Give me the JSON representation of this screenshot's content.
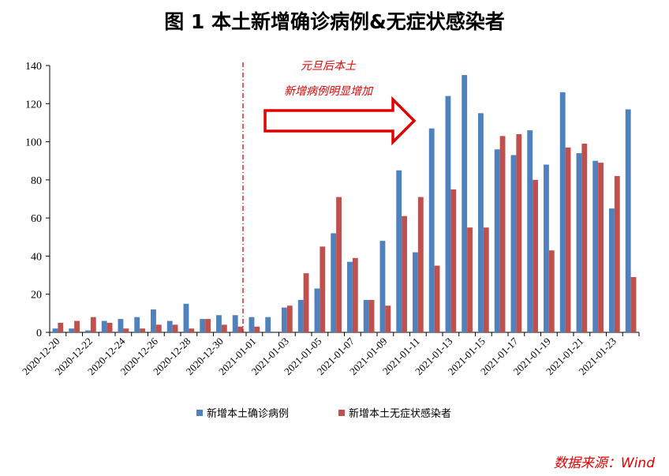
{
  "title": "图 1   本土新增确诊病例&无症状感染者",
  "source_note": "数据来源：Wind",
  "annotation": {
    "line1": "元旦后本土",
    "line2": "新增病例明显增加"
  },
  "colors": {
    "confirmed": "#4F81BD",
    "asymptomatic": "#C0504D",
    "annotation": "#e00000"
  },
  "chart_data": {
    "type": "bar",
    "title": "图 1   本土新增确诊病例&无症状感染者",
    "xlabel": "",
    "ylabel": "",
    "ylim": [
      0,
      140
    ],
    "yticks": [
      0,
      20,
      40,
      60,
      80,
      100,
      120,
      140
    ],
    "grid": false,
    "legend_position": "bottom",
    "vline_category": "2021-01-01",
    "categories": [
      "2020-12-20",
      "2020-12-21",
      "2020-12-22",
      "2020-12-23",
      "2020-12-24",
      "2020-12-25",
      "2020-12-26",
      "2020-12-27",
      "2020-12-28",
      "2020-12-29",
      "2020-12-30",
      "2020-12-31",
      "2021-01-01",
      "2021-01-02",
      "2021-01-03",
      "2021-01-04",
      "2021-01-05",
      "2021-01-06",
      "2021-01-07",
      "2021-01-08",
      "2021-01-09",
      "2021-01-10",
      "2021-01-11",
      "2021-01-12",
      "2021-01-13",
      "2021-01-14",
      "2021-01-15",
      "2021-01-16",
      "2021-01-17",
      "2021-01-18",
      "2021-01-19",
      "2021-01-20",
      "2021-01-21",
      "2021-01-22",
      "2021-01-23",
      "2021-01-24"
    ],
    "xtick_labels": [
      "2020-12-20",
      "2020-12-22",
      "2020-12-24",
      "2020-12-26",
      "2020-12-28",
      "2020-12-30",
      "2021-01-01",
      "2021-01-03",
      "2021-01-05",
      "2021-01-07",
      "2021-01-09",
      "2021-01-11",
      "2021-01-13",
      "2021-01-15",
      "2021-01-17",
      "2021-01-19",
      "2021-01-21",
      "2021-01-23"
    ],
    "series": [
      {
        "name": "新增本土确诊病例",
        "values": [
          2,
          2,
          1,
          6,
          7,
          8,
          12,
          6,
          15,
          7,
          9,
          9,
          8,
          8,
          13,
          17,
          23,
          52,
          37,
          17,
          48,
          85,
          42,
          107,
          124,
          135,
          115,
          96,
          93,
          106,
          88,
          126,
          94,
          90,
          65,
          117
        ]
      },
      {
        "name": "新增本土无症状感染者",
        "values": [
          5,
          6,
          8,
          5,
          2,
          2,
          4,
          4,
          2,
          7,
          4,
          3,
          3,
          0,
          14,
          31,
          45,
          71,
          39,
          17,
          14,
          61,
          71,
          35,
          75,
          55,
          55,
          103,
          104,
          80,
          43,
          97,
          99,
          89,
          82,
          29
        ]
      }
    ]
  }
}
